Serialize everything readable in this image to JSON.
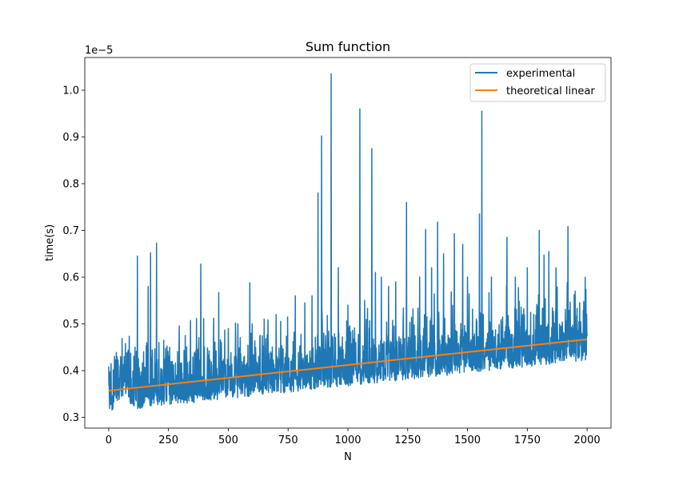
{
  "chart_data": {
    "type": "line",
    "title": "Sum function",
    "xlabel": "N",
    "ylabel": "time(s)",
    "y_offset_text": "1e−5",
    "xlim": [
      -100,
      2100
    ],
    "ylim": [
      0.277,
      1.07
    ],
    "y_scale_factor": 1e-05,
    "x_ticks": [
      0,
      250,
      500,
      750,
      1000,
      1250,
      1500,
      1750,
      2000
    ],
    "x_tick_labels": [
      "0",
      "250",
      "500",
      "750",
      "1000",
      "1250",
      "1500",
      "1750",
      "2000"
    ],
    "y_ticks": [
      0.3,
      0.4,
      0.5,
      0.6,
      0.7,
      0.8,
      0.9,
      1.0
    ],
    "y_tick_labels": [
      "0.3",
      "0.4",
      "0.5",
      "0.6",
      "0.7",
      "0.8",
      "0.9",
      "1.0"
    ],
    "grid": false,
    "legend_position": "top-right",
    "series": [
      {
        "name": "experimental",
        "color": "#1f77b4",
        "x_range": [
          0,
          2000
        ],
        "trend": {
          "start": 0.352,
          "end": 0.462
        },
        "spikes": [
          [
            2,
            0.372
          ],
          [
            10,
            0.415
          ],
          [
            28,
            0.423
          ],
          [
            40,
            0.41
          ],
          [
            50,
            0.43
          ],
          [
            65,
            0.43
          ],
          [
            110,
            0.45
          ],
          [
            120,
            0.645
          ],
          [
            165,
            0.58
          ],
          [
            175,
            0.652
          ],
          [
            200,
            0.673
          ],
          [
            210,
            0.46
          ],
          [
            230,
            0.465
          ],
          [
            255,
            0.45
          ],
          [
            320,
            0.475
          ],
          [
            385,
            0.628
          ],
          [
            400,
            0.45
          ],
          [
            460,
            0.567
          ],
          [
            500,
            0.49
          ],
          [
            540,
            0.5
          ],
          [
            590,
            0.588
          ],
          [
            600,
            0.5
          ],
          [
            650,
            0.51
          ],
          [
            700,
            0.52
          ],
          [
            780,
            0.56
          ],
          [
            820,
            0.545
          ],
          [
            850,
            0.56
          ],
          [
            875,
            0.78
          ],
          [
            890,
            0.902
          ],
          [
            930,
            1.035
          ],
          [
            960,
            0.62
          ],
          [
            1000,
            0.54
          ],
          [
            1050,
            0.96
          ],
          [
            1070,
            0.55
          ],
          [
            1100,
            0.875
          ],
          [
            1115,
            0.61
          ],
          [
            1140,
            0.6
          ],
          [
            1170,
            0.58
          ],
          [
            1200,
            0.59
          ],
          [
            1245,
            0.76
          ],
          [
            1300,
            0.6
          ],
          [
            1325,
            0.702
          ],
          [
            1350,
            0.62
          ],
          [
            1375,
            0.718
          ],
          [
            1400,
            0.65
          ],
          [
            1445,
            0.693
          ],
          [
            1480,
            0.67
          ],
          [
            1500,
            0.6
          ],
          [
            1550,
            0.735
          ],
          [
            1560,
            0.955
          ],
          [
            1600,
            0.6
          ],
          [
            1665,
            0.685
          ],
          [
            1700,
            0.6
          ],
          [
            1750,
            0.62
          ],
          [
            1800,
            0.7
          ],
          [
            1820,
            0.647
          ],
          [
            1840,
            0.655
          ],
          [
            1870,
            0.62
          ],
          [
            1920,
            0.708
          ],
          [
            1950,
            0.57
          ],
          [
            1990,
            0.52
          ]
        ]
      },
      {
        "name": "theoretical linear",
        "color": "#ff7f0e",
        "x": [
          0,
          2000
        ],
        "y": [
          0.357,
          0.467
        ]
      }
    ]
  }
}
